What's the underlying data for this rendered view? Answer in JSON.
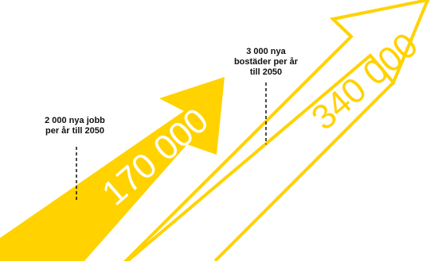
{
  "colors": {
    "accent": "#ffd200",
    "text": "#111111",
    "background": "#ffffff"
  },
  "arrows": [
    {
      "value_text": "170 000",
      "style": "filled",
      "note_lines": [
        "2 000 nya jobb",
        "per år till 2050"
      ]
    },
    {
      "value_text": "340 000",
      "style": "outline",
      "note_lines": [
        "3 000 nya",
        "bostäder per år",
        "till 2050"
      ]
    }
  ]
}
